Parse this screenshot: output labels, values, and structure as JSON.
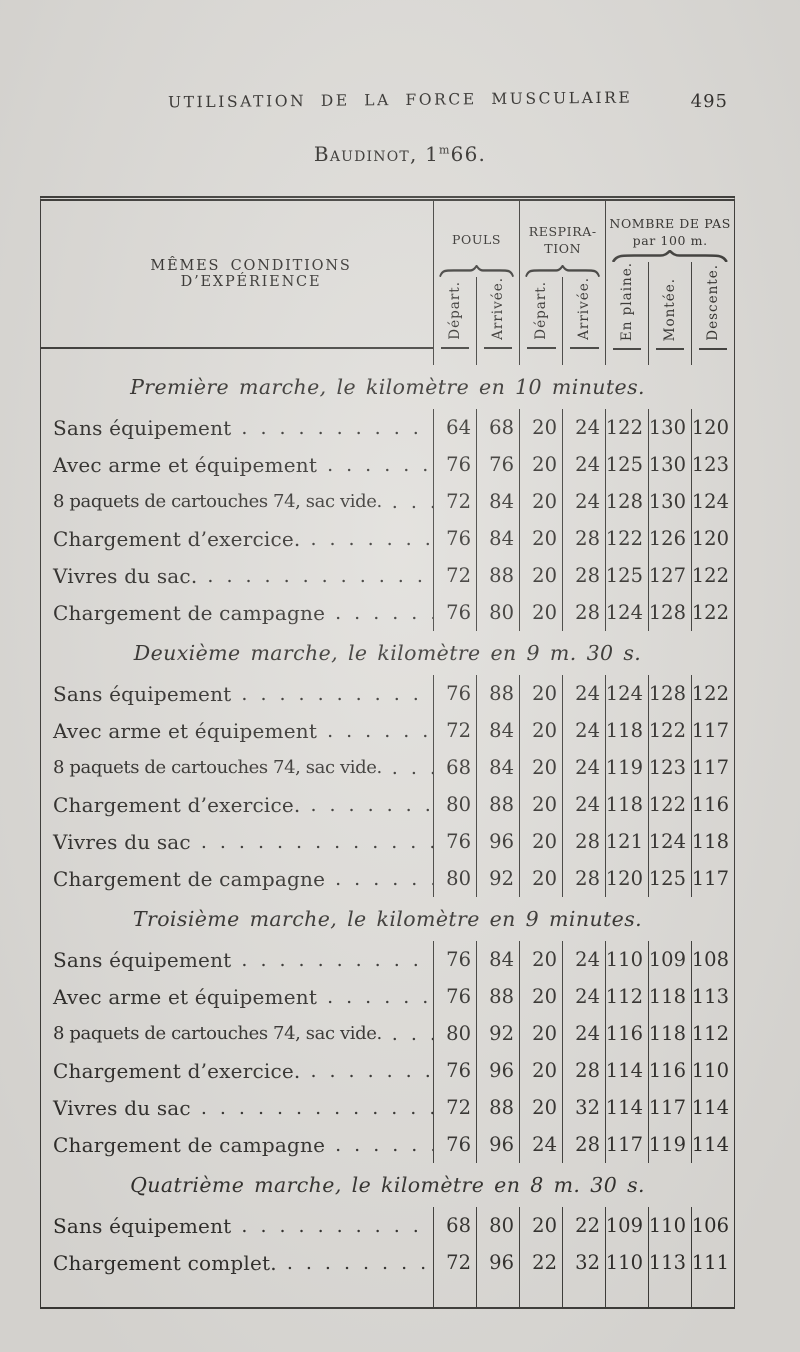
{
  "page": {
    "running_header": "UTILISATION DE LA FORCE MUSCULAIRE",
    "page_number": "495",
    "subtitle_name": "Baudinot, 1",
    "subtitle_sup": "m",
    "subtitle_rest": "66."
  },
  "table": {
    "label_header": "MÊMES CONDITIONS D’EXPÉRIENCE",
    "leader_dots": ".........................",
    "groups": [
      {
        "title_lines": [
          "POULS"
        ],
        "cols": [
          "Départ.",
          "Arrivée."
        ]
      },
      {
        "title_lines": [
          "RESPIRA-",
          "TION"
        ],
        "cols": [
          "Départ.",
          "Arrivée."
        ]
      },
      {
        "title_lines": [
          "NOMBRE DE PAS",
          "par 100 m."
        ],
        "cols": [
          "En plaine.",
          "Montée.",
          "Descente."
        ]
      }
    ],
    "sections": [
      {
        "title": "Première marche, le kilomètre en 10 minutes.",
        "rows": [
          {
            "label": "Sans équipement",
            "values": [
              "64",
              "68",
              "20",
              "24",
              "122",
              "130",
              "120"
            ]
          },
          {
            "label": "Avec arme et équipement",
            "values": [
              "76",
              "76",
              "20",
              "24",
              "125",
              "130",
              "123"
            ]
          },
          {
            "label": "8 paquets de cartouches 74, sac vide.",
            "values": [
              "72",
              "84",
              "20",
              "24",
              "128",
              "130",
              "124"
            ]
          },
          {
            "label": "Chargement d’exercice.",
            "values": [
              "76",
              "84",
              "20",
              "28",
              "122",
              "126",
              "120"
            ]
          },
          {
            "label": "Vivres du sac.",
            "values": [
              "72",
              "88",
              "20",
              "28",
              "125",
              "127",
              "122"
            ]
          },
          {
            "label": "Chargement de campagne",
            "values": [
              "76",
              "80",
              "20",
              "28",
              "124",
              "128",
              "122"
            ]
          }
        ]
      },
      {
        "title": "Deuxième marche, le kilomètre en 9 m. 30 s.",
        "rows": [
          {
            "label": "Sans équipement",
            "values": [
              "76",
              "88",
              "20",
              "24",
              "124",
              "128",
              "122"
            ]
          },
          {
            "label": "Avec arme et équipement",
            "values": [
              "72",
              "84",
              "20",
              "24",
              "118",
              "122",
              "117"
            ]
          },
          {
            "label": "8 paquets de cartouches 74, sac vide.",
            "values": [
              "68",
              "84",
              "20",
              "24",
              "119",
              "123",
              "117"
            ]
          },
          {
            "label": "Chargement d’exercice.",
            "values": [
              "80",
              "88",
              "20",
              "24",
              "118",
              "122",
              "116"
            ]
          },
          {
            "label": "Vivres du sac",
            "values": [
              "76",
              "96",
              "20",
              "28",
              "121",
              "124",
              "118"
            ]
          },
          {
            "label": "Chargement de campagne",
            "values": [
              "80",
              "92",
              "20",
              "28",
              "120",
              "125",
              "117"
            ]
          }
        ]
      },
      {
        "title": "Troisième marche, le kilomètre en 9 minutes.",
        "rows": [
          {
            "label": "Sans équipement",
            "values": [
              "76",
              "84",
              "20",
              "24",
              "110",
              "109",
              "108"
            ]
          },
          {
            "label": "Avec arme et équipement",
            "values": [
              "76",
              "88",
              "20",
              "24",
              "112",
              "118",
              "113"
            ]
          },
          {
            "label": "8 paquets de cartouches 74, sac vide.",
            "values": [
              "80",
              "92",
              "20",
              "24",
              "116",
              "118",
              "112"
            ]
          },
          {
            "label": "Chargement d’exercice.",
            "values": [
              "76",
              "96",
              "20",
              "28",
              "114",
              "116",
              "110"
            ]
          },
          {
            "label": "Vivres du sac",
            "values": [
              "72",
              "88",
              "20",
              "32",
              "114",
              "117",
              "114"
            ]
          },
          {
            "label": "Chargement de campagne",
            "values": [
              "76",
              "96",
              "24",
              "28",
              "117",
              "119",
              "114"
            ]
          }
        ]
      },
      {
        "title": "Quatrième marche, le kilomètre en 8 m. 30 s.",
        "rows": [
          {
            "label": "Sans équipement",
            "values": [
              "68",
              "80",
              "20",
              "22",
              "109",
              "110",
              "106"
            ]
          },
          {
            "label": "Chargement complet.",
            "values": [
              "72",
              "96",
              "22",
              "32",
              "110",
              "113",
              "111"
            ]
          }
        ]
      }
    ]
  }
}
